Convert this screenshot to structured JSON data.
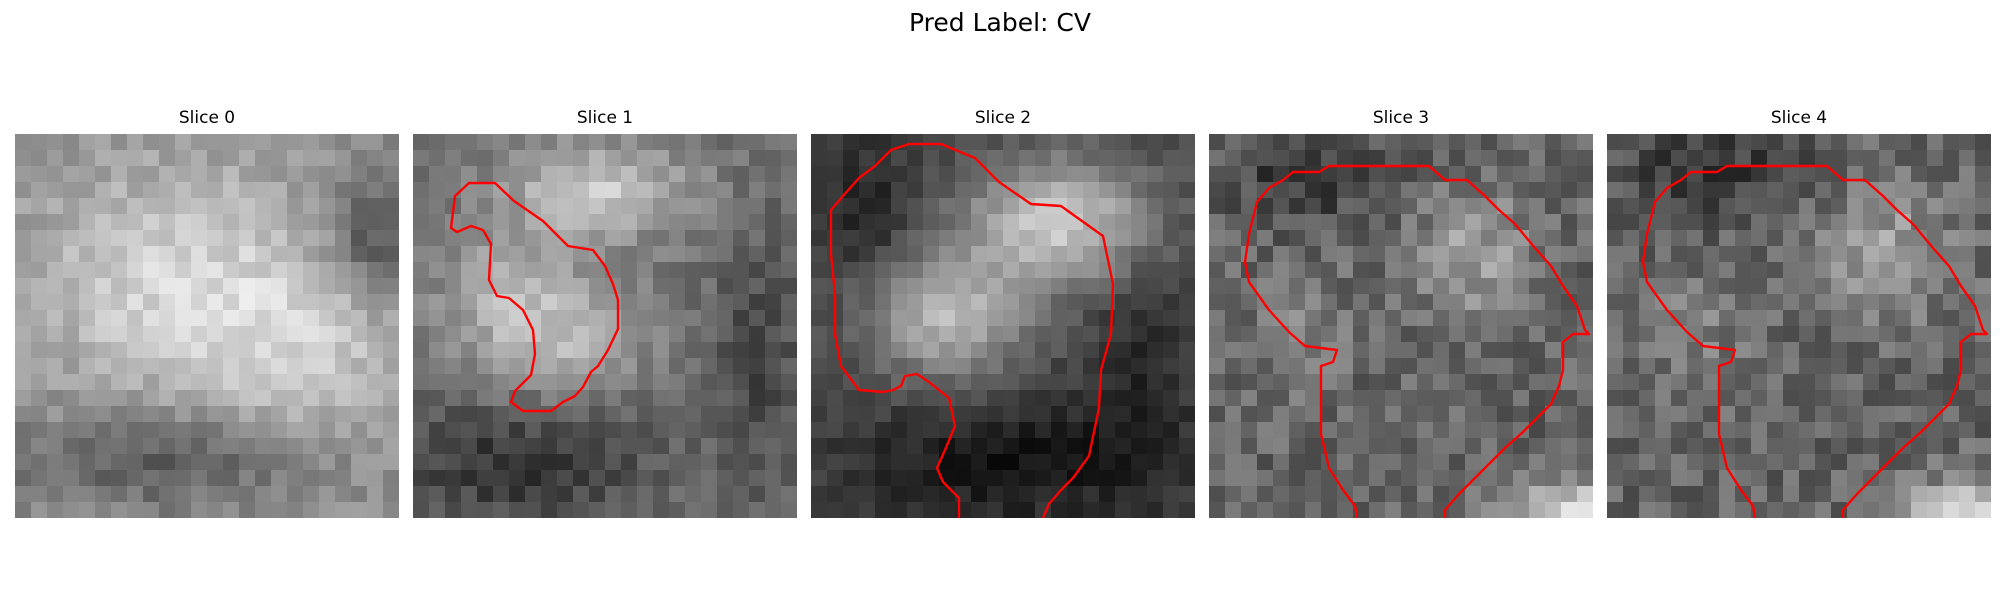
{
  "figure": {
    "title": "Pred Label: CV"
  },
  "panels": [
    {
      "title": "Slice 0",
      "has_contour": false
    },
    {
      "title": "Slice 1",
      "has_contour": true
    },
    {
      "title": "Slice 2",
      "has_contour": true
    },
    {
      "title": "Slice 3",
      "has_contour": true
    },
    {
      "title": "Slice 4",
      "has_contour": true
    }
  ],
  "colors": {
    "contour": "#ff0000",
    "background": "#ffffff"
  },
  "image": {
    "colormap": "grayscale",
    "grid_cells": 24
  }
}
